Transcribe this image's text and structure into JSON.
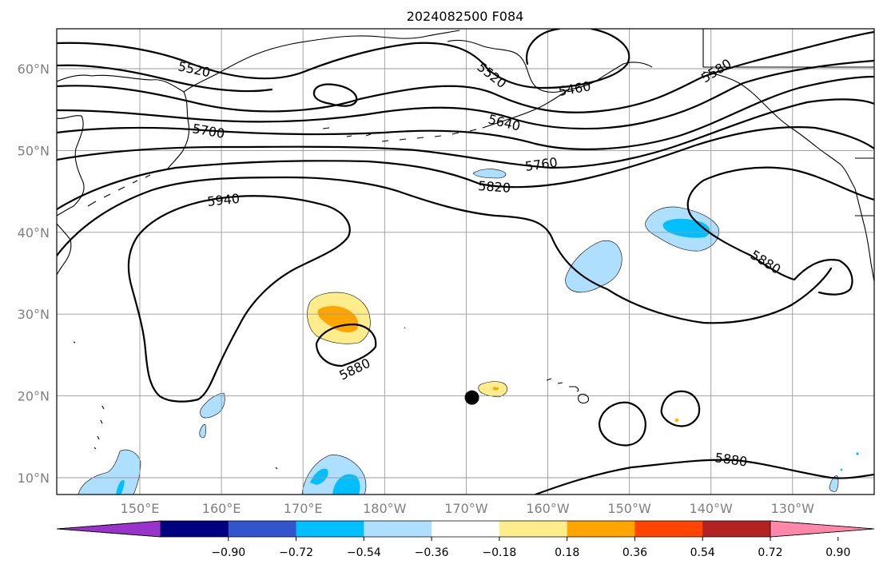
{
  "title": "2024082500 F084",
  "map": {
    "lat_labels": [
      {
        "text": "60°N",
        "lat": 60
      },
      {
        "text": "50°N",
        "lat": 50
      },
      {
        "text": "40°N",
        "lat": 40
      },
      {
        "text": "30°N",
        "lat": 30
      },
      {
        "text": "20°N",
        "lat": 20
      },
      {
        "text": "10°N",
        "lat": 10
      }
    ],
    "lon_labels": [
      {
        "text": "150°E",
        "lon": 150
      },
      {
        "text": "160°E",
        "lon": 160
      },
      {
        "text": "170°E",
        "lon": 170
      },
      {
        "text": "180°W",
        "lon": 180
      },
      {
        "text": "170°W",
        "lon": 190
      },
      {
        "text": "160°W",
        "lon": 200
      },
      {
        "text": "150°W",
        "lon": 210
      },
      {
        "text": "140°W",
        "lon": 220
      },
      {
        "text": "130°W",
        "lon": 230
      }
    ],
    "contour_labels": [
      "5520",
      "5520",
      "5460",
      "5580",
      "5700",
      "5640",
      "5760",
      "5820",
      "5940",
      "5880",
      "5880",
      "5880"
    ],
    "storm_marker": {
      "lon": 190.7,
      "lat": 19.8,
      "color": "#000000"
    }
  },
  "colorbar": {
    "colors": [
      "#9933cc",
      "#000080",
      "#3355cc",
      "#00bfff",
      "#aedfff",
      "#ffffff",
      "#ffec8b",
      "#ffa500",
      "#ff4500",
      "#b22222",
      "#ff88aa"
    ],
    "tick_labels": [
      "−0.90",
      "−0.72",
      "−0.54",
      "−0.36",
      "−0.18",
      "0.18",
      "0.36",
      "0.54",
      "0.72",
      "0.90"
    ]
  }
}
